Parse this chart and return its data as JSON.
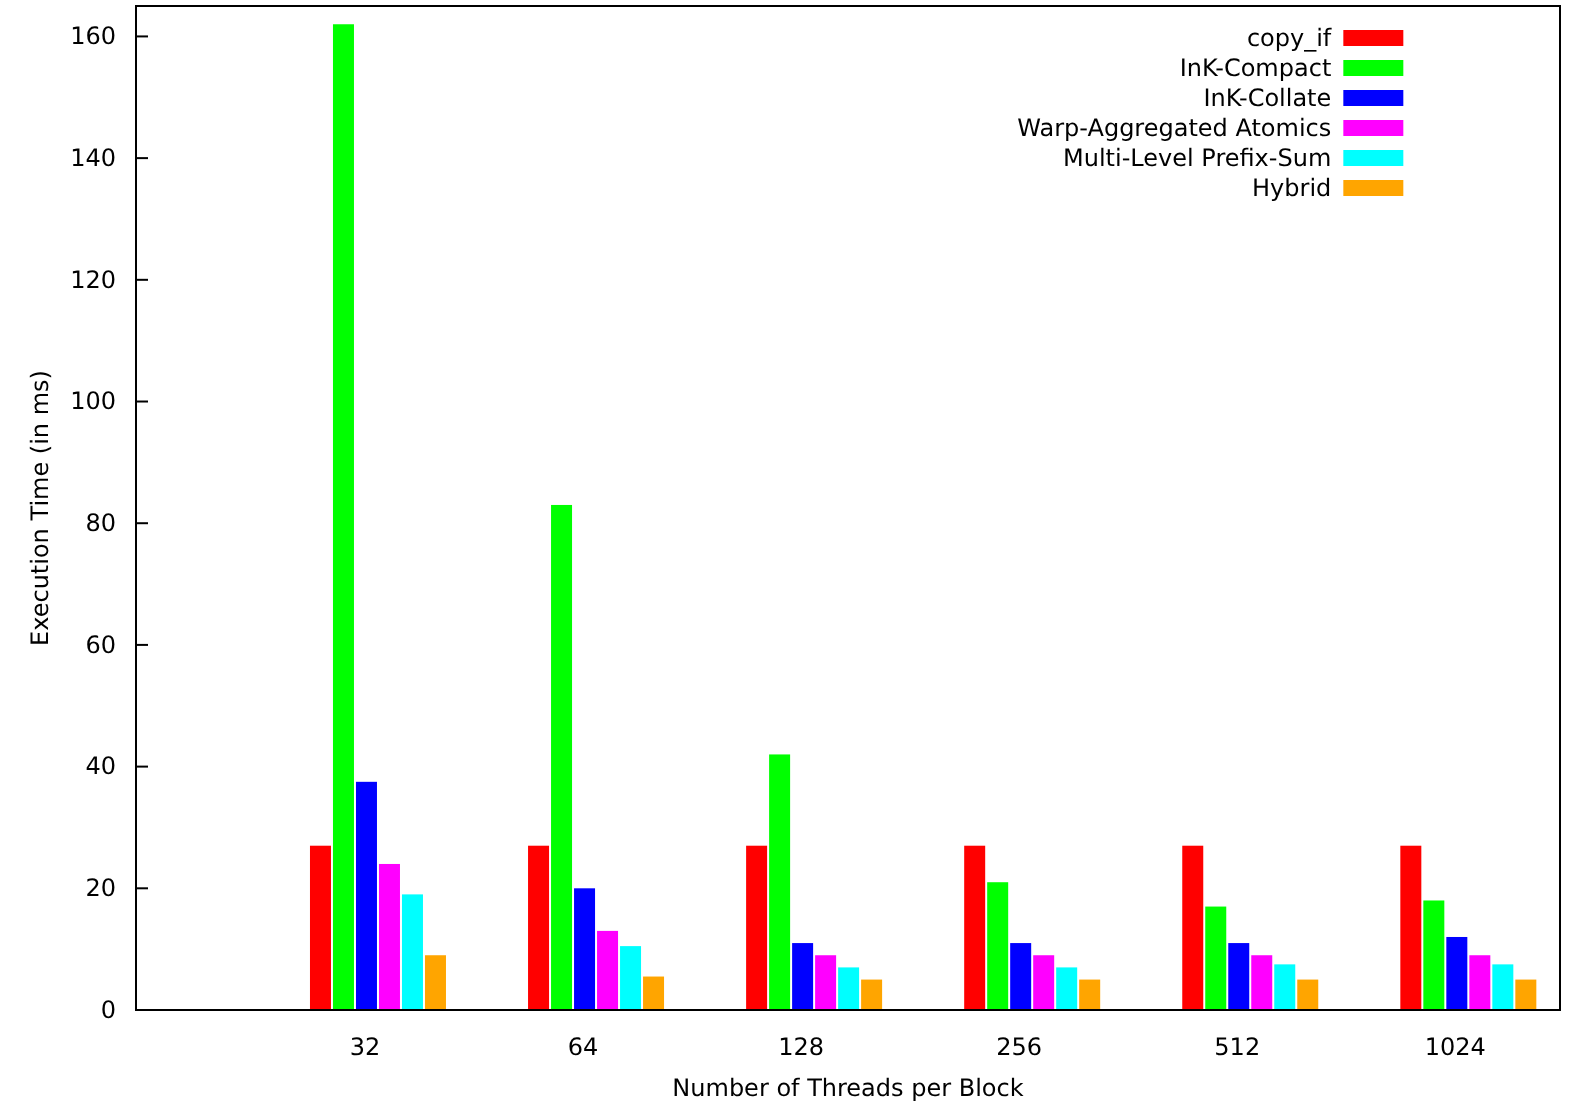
{
  "chart_data": {
    "type": "bar",
    "xlabel": "Number of Threads per Block",
    "ylabel": "Execution Time (in ms)",
    "categories": [
      "32",
      "64",
      "128",
      "256",
      "512",
      "1024"
    ],
    "ylim": [
      0,
      165
    ],
    "yticks": [
      0,
      20,
      40,
      60,
      80,
      100,
      120,
      140,
      160
    ],
    "legend": "top right",
    "series": [
      {
        "name": "copy_if",
        "color": "#ff0000",
        "values": [
          27,
          27,
          27,
          27,
          27,
          27
        ]
      },
      {
        "name": "InK-Compact",
        "color": "#00ff00",
        "values": [
          162,
          83,
          42,
          21,
          17,
          18
        ]
      },
      {
        "name": "InK-Collate",
        "color": "#0000ff",
        "values": [
          37.5,
          20,
          11,
          11,
          11,
          12
        ]
      },
      {
        "name": "Warp-Aggregated Atomics",
        "color": "#ff00ff",
        "values": [
          24,
          13,
          9,
          9,
          9,
          9
        ]
      },
      {
        "name": "Multi-Level Prefix-Sum",
        "color": "#00ffff",
        "values": [
          19,
          10.5,
          7,
          7,
          7.5,
          7.5
        ]
      },
      {
        "name": "Hybrid",
        "color": "#ffa500",
        "values": [
          9,
          5.5,
          5,
          5,
          5,
          5
        ]
      }
    ]
  }
}
